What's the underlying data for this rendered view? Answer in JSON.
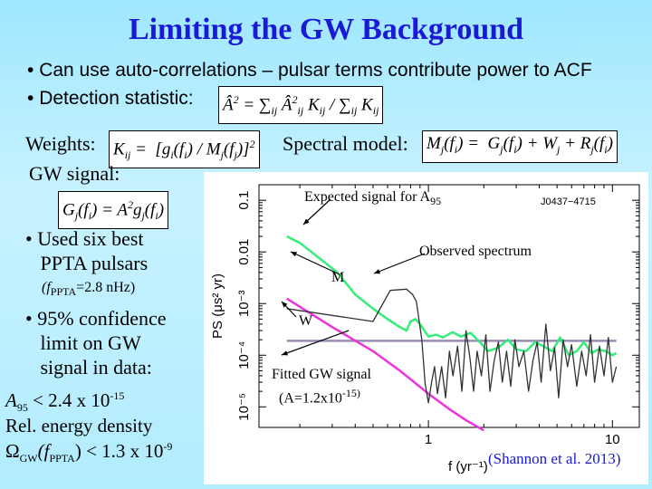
{
  "title": "Limiting the GW Background",
  "bullets_top": [
    "Can use auto-correlations – pulsar terms contribute power to ACF",
    "Detection statistic:"
  ],
  "weights_label": "Weights:",
  "spectral_label": "Spectral model:",
  "gw_signal_label": "GW signal:",
  "left_points": {
    "p1_line1": "Used six best",
    "p1_line2": "PPTA pulsars",
    "fppta_prefix": "(f",
    "fppta_sub": "PPTA",
    "fppta_value": "=2.8 nHz)",
    "p2_line1": "95% confidence",
    "p2_line2": "limit on GW",
    "p2_line3": "signal in data:",
    "a95_prefix": "A",
    "a95_sub": "95",
    "a95_value": " < 2.4 x 10",
    "a95_exp": "-15",
    "rel_energy": "Rel. energy density",
    "omega": "Ω",
    "omega_sub": "GW",
    "omega_paren": "(f",
    "omega_fsub": "PPTA",
    "omega_value": ") < 1.3 x 10",
    "omega_exp": "-9"
  },
  "annotations": {
    "expected_prefix": "Expected signal for A",
    "expected_sub": "95",
    "observed": "Observed spectrum",
    "m": "M",
    "w": "W",
    "fitted_line1": "Fitted GW signal",
    "fitted_line2_prefix": "(A=1.2x10",
    "fitted_line2_exp": "-15)",
    "citation": "(Shannon et al. 2013)"
  },
  "colors": {
    "title": "#1a1ad6",
    "observed": "#333333",
    "expected": "#33ee77",
    "fitted": "#ee33dd",
    "white_noise": "#9b8ab5"
  },
  "chart_data": {
    "type": "line",
    "title": "J0437−4715",
    "xlabel": "f  (yr⁻¹)",
    "ylabel": "PS  (μs² yr)",
    "xscale": "log",
    "yscale": "log",
    "xlim": [
      0.12,
      14
    ],
    "ylim": [
      4e-06,
      0.2
    ],
    "x_ticks": [
      {
        "v": 1,
        "label": "1"
      },
      {
        "v": 10,
        "label": "10"
      }
    ],
    "y_ticks": [
      {
        "v": 0.1,
        "label": "0.1"
      },
      {
        "v": 0.01,
        "label": "0.01"
      },
      {
        "v": 0.001,
        "label": "10⁻³"
      },
      {
        "v": 0.0001,
        "label": "10⁻⁴"
      },
      {
        "v": 1e-05,
        "label": "10⁻⁵"
      }
    ],
    "series": [
      {
        "key": "observed",
        "x": [
          0.17,
          0.5,
          0.62,
          0.76,
          0.82,
          0.86,
          0.92,
          0.96,
          1.0,
          1.04,
          1.08,
          1.12,
          1.18,
          1.24,
          1.3,
          1.36,
          1.44,
          1.52,
          1.6,
          1.68,
          1.76,
          1.84,
          1.94,
          2.05,
          2.16,
          2.28,
          2.4,
          2.52,
          2.66,
          2.8,
          2.95,
          3.1,
          3.3,
          3.5,
          3.7,
          3.9,
          4.1,
          4.35,
          4.6,
          4.85,
          5.1,
          5.4,
          5.7,
          6.0,
          6.4,
          6.8,
          7.2,
          7.6,
          8.0,
          8.5,
          9.0,
          9.5,
          10.0,
          10.5
        ],
        "y": [
          0.0008,
          0.00045,
          0.0018,
          0.0019,
          0.0015,
          0.0011,
          0.0002,
          2.8e-05,
          1.2e-05,
          3e-05,
          6e-05,
          1.8e-05,
          6e-05,
          1.5e-05,
          0.00012,
          4e-05,
          0.00015,
          2e-05,
          0.0003,
          9e-05,
          2e-05,
          0.00012,
          4e-05,
          0.00025,
          2e-05,
          8e-05,
          0.00018,
          3e-05,
          0.00012,
          2.5e-05,
          0.0002,
          6e-05,
          0.00012,
          2e-05,
          8e-05,
          0.00018,
          3e-05,
          0.0004,
          5e-05,
          0.00014,
          1.5e-05,
          0.0002,
          6e-05,
          0.00016,
          2.5e-05,
          0.00012,
          4e-05,
          0.00025,
          3e-05,
          0.00015,
          4e-05,
          0.00022,
          3e-05,
          6e-05
        ]
      },
      {
        "key": "expected",
        "x": [
          0.17,
          0.2,
          0.25,
          0.32,
          0.4,
          0.5,
          0.6,
          0.7,
          0.76,
          0.8,
          0.85,
          0.9,
          1.0,
          1.1,
          1.2,
          1.35,
          1.5,
          1.7,
          1.9,
          2.1,
          2.4,
          2.7,
          3.0,
          3.4,
          3.8,
          4.2,
          4.7,
          5.2,
          5.8,
          6.4,
          7.0,
          7.7,
          8.4,
          9.2,
          10.0,
          10.5
        ],
        "y": [
          0.02,
          0.015,
          0.008,
          0.004,
          0.0015,
          0.0008,
          0.0005,
          0.00035,
          0.0003,
          0.00045,
          0.0005,
          0.0004,
          0.00023,
          0.00025,
          0.00022,
          0.00028,
          0.00023,
          0.00027,
          0.00018,
          0.00012,
          0.00014,
          0.0002,
          0.00013,
          0.00012,
          0.00018,
          0.00015,
          0.00012,
          0.00022,
          0.0001,
          0.00012,
          0.00018,
          0.00011,
          0.00013,
          0.00012,
          0.0001,
          0.00011
        ]
      },
      {
        "key": "fitted",
        "x": [
          0.17,
          0.3,
          0.5,
          0.7,
          1.0,
          1.3,
          1.6,
          2.0
        ],
        "y": [
          0.00125,
          0.00035,
          0.00012,
          5e-05,
          1.8e-05,
          9e-06,
          5.5e-06,
          3.5e-06
        ]
      },
      {
        "key": "white_noise",
        "x": [
          0.17,
          10.5
        ],
        "y": [
          0.00019,
          0.00019
        ]
      }
    ]
  }
}
